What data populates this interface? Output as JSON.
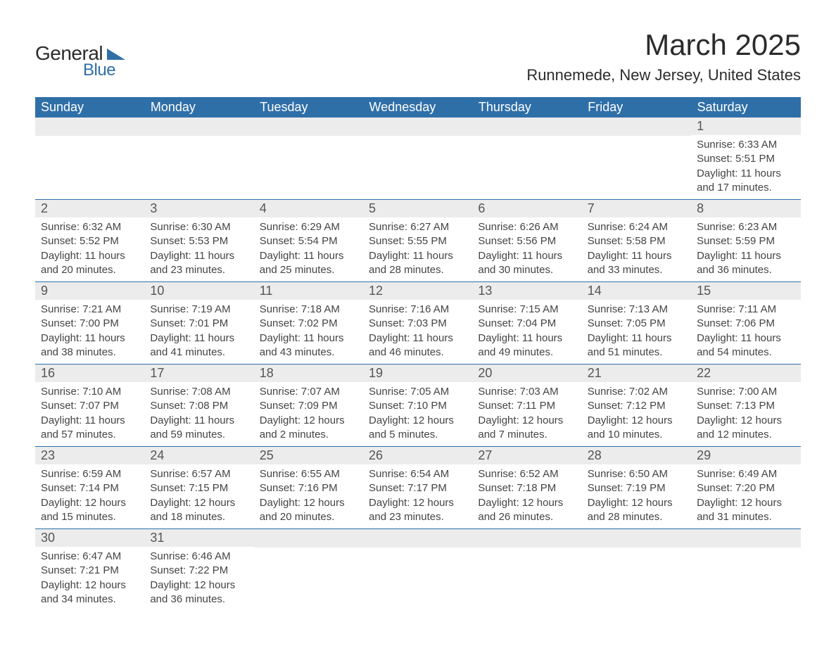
{
  "brand": {
    "general": "General",
    "blue": "Blue"
  },
  "title": "March 2025",
  "location": "Runnemede, New Jersey, United States",
  "colors": {
    "header_bg": "#2f6fa8",
    "header_text": "#ffffff",
    "daynum_bg": "#ececec",
    "text": "#444444",
    "border": "#2f6fa8",
    "background": "#ffffff"
  },
  "day_headers": [
    "Sunday",
    "Monday",
    "Tuesday",
    "Wednesday",
    "Thursday",
    "Friday",
    "Saturday"
  ],
  "weeks": [
    [
      {
        "n": "",
        "sr": "",
        "ss": "",
        "dl": ""
      },
      {
        "n": "",
        "sr": "",
        "ss": "",
        "dl": ""
      },
      {
        "n": "",
        "sr": "",
        "ss": "",
        "dl": ""
      },
      {
        "n": "",
        "sr": "",
        "ss": "",
        "dl": ""
      },
      {
        "n": "",
        "sr": "",
        "ss": "",
        "dl": ""
      },
      {
        "n": "",
        "sr": "",
        "ss": "",
        "dl": ""
      },
      {
        "n": "1",
        "sr": "Sunrise: 6:33 AM",
        "ss": "Sunset: 5:51 PM",
        "dl": "Daylight: 11 hours and 17 minutes."
      }
    ],
    [
      {
        "n": "2",
        "sr": "Sunrise: 6:32 AM",
        "ss": "Sunset: 5:52 PM",
        "dl": "Daylight: 11 hours and 20 minutes."
      },
      {
        "n": "3",
        "sr": "Sunrise: 6:30 AM",
        "ss": "Sunset: 5:53 PM",
        "dl": "Daylight: 11 hours and 23 minutes."
      },
      {
        "n": "4",
        "sr": "Sunrise: 6:29 AM",
        "ss": "Sunset: 5:54 PM",
        "dl": "Daylight: 11 hours and 25 minutes."
      },
      {
        "n": "5",
        "sr": "Sunrise: 6:27 AM",
        "ss": "Sunset: 5:55 PM",
        "dl": "Daylight: 11 hours and 28 minutes."
      },
      {
        "n": "6",
        "sr": "Sunrise: 6:26 AM",
        "ss": "Sunset: 5:56 PM",
        "dl": "Daylight: 11 hours and 30 minutes."
      },
      {
        "n": "7",
        "sr": "Sunrise: 6:24 AM",
        "ss": "Sunset: 5:58 PM",
        "dl": "Daylight: 11 hours and 33 minutes."
      },
      {
        "n": "8",
        "sr": "Sunrise: 6:23 AM",
        "ss": "Sunset: 5:59 PM",
        "dl": "Daylight: 11 hours and 36 minutes."
      }
    ],
    [
      {
        "n": "9",
        "sr": "Sunrise: 7:21 AM",
        "ss": "Sunset: 7:00 PM",
        "dl": "Daylight: 11 hours and 38 minutes."
      },
      {
        "n": "10",
        "sr": "Sunrise: 7:19 AM",
        "ss": "Sunset: 7:01 PM",
        "dl": "Daylight: 11 hours and 41 minutes."
      },
      {
        "n": "11",
        "sr": "Sunrise: 7:18 AM",
        "ss": "Sunset: 7:02 PM",
        "dl": "Daylight: 11 hours and 43 minutes."
      },
      {
        "n": "12",
        "sr": "Sunrise: 7:16 AM",
        "ss": "Sunset: 7:03 PM",
        "dl": "Daylight: 11 hours and 46 minutes."
      },
      {
        "n": "13",
        "sr": "Sunrise: 7:15 AM",
        "ss": "Sunset: 7:04 PM",
        "dl": "Daylight: 11 hours and 49 minutes."
      },
      {
        "n": "14",
        "sr": "Sunrise: 7:13 AM",
        "ss": "Sunset: 7:05 PM",
        "dl": "Daylight: 11 hours and 51 minutes."
      },
      {
        "n": "15",
        "sr": "Sunrise: 7:11 AM",
        "ss": "Sunset: 7:06 PM",
        "dl": "Daylight: 11 hours and 54 minutes."
      }
    ],
    [
      {
        "n": "16",
        "sr": "Sunrise: 7:10 AM",
        "ss": "Sunset: 7:07 PM",
        "dl": "Daylight: 11 hours and 57 minutes."
      },
      {
        "n": "17",
        "sr": "Sunrise: 7:08 AM",
        "ss": "Sunset: 7:08 PM",
        "dl": "Daylight: 11 hours and 59 minutes."
      },
      {
        "n": "18",
        "sr": "Sunrise: 7:07 AM",
        "ss": "Sunset: 7:09 PM",
        "dl": "Daylight: 12 hours and 2 minutes."
      },
      {
        "n": "19",
        "sr": "Sunrise: 7:05 AM",
        "ss": "Sunset: 7:10 PM",
        "dl": "Daylight: 12 hours and 5 minutes."
      },
      {
        "n": "20",
        "sr": "Sunrise: 7:03 AM",
        "ss": "Sunset: 7:11 PM",
        "dl": "Daylight: 12 hours and 7 minutes."
      },
      {
        "n": "21",
        "sr": "Sunrise: 7:02 AM",
        "ss": "Sunset: 7:12 PM",
        "dl": "Daylight: 12 hours and 10 minutes."
      },
      {
        "n": "22",
        "sr": "Sunrise: 7:00 AM",
        "ss": "Sunset: 7:13 PM",
        "dl": "Daylight: 12 hours and 12 minutes."
      }
    ],
    [
      {
        "n": "23",
        "sr": "Sunrise: 6:59 AM",
        "ss": "Sunset: 7:14 PM",
        "dl": "Daylight: 12 hours and 15 minutes."
      },
      {
        "n": "24",
        "sr": "Sunrise: 6:57 AM",
        "ss": "Sunset: 7:15 PM",
        "dl": "Daylight: 12 hours and 18 minutes."
      },
      {
        "n": "25",
        "sr": "Sunrise: 6:55 AM",
        "ss": "Sunset: 7:16 PM",
        "dl": "Daylight: 12 hours and 20 minutes."
      },
      {
        "n": "26",
        "sr": "Sunrise: 6:54 AM",
        "ss": "Sunset: 7:17 PM",
        "dl": "Daylight: 12 hours and 23 minutes."
      },
      {
        "n": "27",
        "sr": "Sunrise: 6:52 AM",
        "ss": "Sunset: 7:18 PM",
        "dl": "Daylight: 12 hours and 26 minutes."
      },
      {
        "n": "28",
        "sr": "Sunrise: 6:50 AM",
        "ss": "Sunset: 7:19 PM",
        "dl": "Daylight: 12 hours and 28 minutes."
      },
      {
        "n": "29",
        "sr": "Sunrise: 6:49 AM",
        "ss": "Sunset: 7:20 PM",
        "dl": "Daylight: 12 hours and 31 minutes."
      }
    ],
    [
      {
        "n": "30",
        "sr": "Sunrise: 6:47 AM",
        "ss": "Sunset: 7:21 PM",
        "dl": "Daylight: 12 hours and 34 minutes."
      },
      {
        "n": "31",
        "sr": "Sunrise: 6:46 AM",
        "ss": "Sunset: 7:22 PM",
        "dl": "Daylight: 12 hours and 36 minutes."
      },
      {
        "n": "",
        "sr": "",
        "ss": "",
        "dl": ""
      },
      {
        "n": "",
        "sr": "",
        "ss": "",
        "dl": ""
      },
      {
        "n": "",
        "sr": "",
        "ss": "",
        "dl": ""
      },
      {
        "n": "",
        "sr": "",
        "ss": "",
        "dl": ""
      },
      {
        "n": "",
        "sr": "",
        "ss": "",
        "dl": ""
      }
    ]
  ]
}
